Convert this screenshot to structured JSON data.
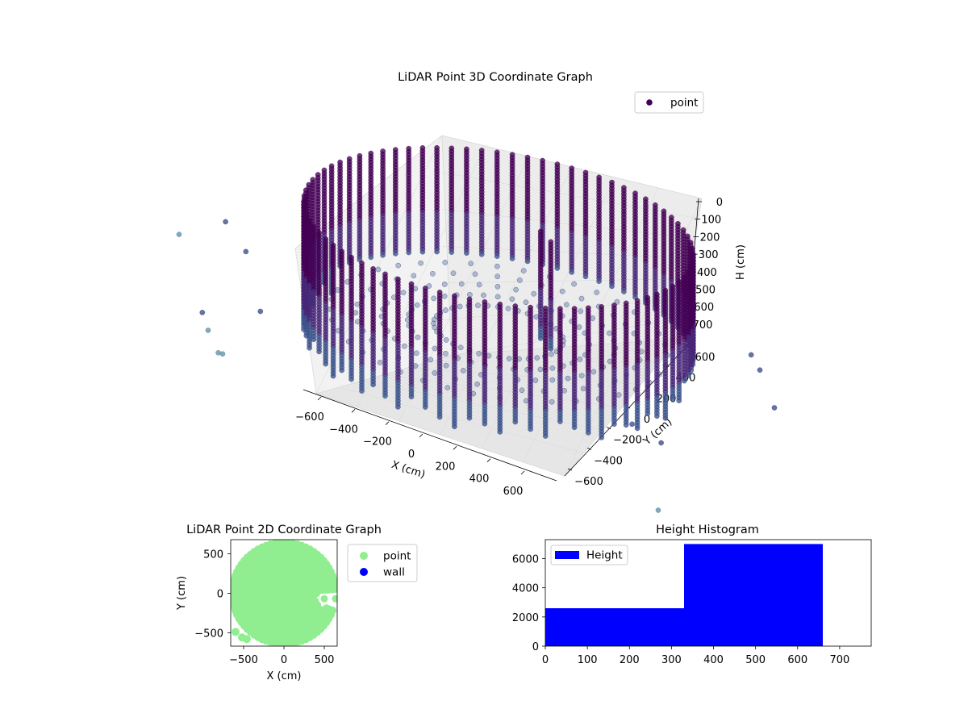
{
  "chart_data": [
    {
      "type": "scatter",
      "projection": "3d",
      "title": "LiDAR Point 3D Coordinate Graph",
      "xlabel": "X (cm)",
      "ylabel": "Y (cm)",
      "zlabel": "H (cm)",
      "xticks": [
        "−600",
        "−400",
        "−200",
        "0",
        "200",
        "400",
        "600"
      ],
      "yticks": [
        "−600",
        "−400",
        "−200",
        "0",
        "200",
        "400",
        "600"
      ],
      "zticks": [
        "0",
        "100",
        "200",
        "300",
        "400",
        "500",
        "600",
        "700"
      ],
      "z_inverted": true,
      "grid": true,
      "legend": {
        "placement": "upper-right",
        "entries": [
          "point"
        ]
      },
      "colors": {
        "point_dark": "#440154",
        "point_mid": "#3b528b",
        "point_light": "#5e8fa8",
        "pane": "#f2f2f2",
        "grid": "#d9d9d9"
      },
      "series": [
        {
          "name": "point",
          "shape": "cylindrical wall",
          "center": [
            0,
            0
          ],
          "radius": 600,
          "h_range": [
            0,
            700
          ],
          "stray_points": [
            {
              "x": -780,
              "y": -640,
              "h": 120
            },
            {
              "x": -700,
              "y": -480,
              "h": 90
            },
            {
              "x": -660,
              "y": -420,
              "h": 260
            },
            {
              "x": -740,
              "y": -560,
              "h": 560
            },
            {
              "x": -690,
              "y": -620,
              "h": 600
            },
            {
              "x": -640,
              "y": -650,
              "h": 680
            },
            {
              "x": -600,
              "y": -700,
              "h": 640
            },
            {
              "x": -560,
              "y": -520,
              "h": 480
            },
            {
              "x": 720,
              "y": -520,
              "h": 420
            },
            {
              "x": 760,
              "y": -400,
              "h": 560
            },
            {
              "x": 800,
              "y": 300,
              "h": 700
            },
            {
              "x": 640,
              "y": 520,
              "h": 690
            },
            {
              "x": 560,
              "y": 620,
              "h": 700
            },
            {
              "x": 900,
              "y": -700,
              "h": 700
            }
          ]
        }
      ]
    },
    {
      "type": "scatter",
      "title": "LiDAR Point 2D Coordinate Graph",
      "xlabel": "X (cm)",
      "ylabel": "Y (cm)",
      "xticks": [
        "−500",
        "0",
        "500"
      ],
      "yticks": [
        "500",
        "0",
        "−500"
      ],
      "xlim": [
        -660,
        660
      ],
      "ylim": [
        -670,
        680
      ],
      "legend": {
        "placement": "outside-right",
        "entries": [
          "point",
          "wall"
        ]
      },
      "colors": {
        "point": "#90ee90",
        "wall": "#0000ff"
      },
      "series": [
        {
          "name": "point",
          "shape": "filled disc",
          "center": [
            0,
            0
          ],
          "radius": 640,
          "gap": [
            {
              "x": 500,
              "y": -70
            },
            {
              "x": 640,
              "y": -70
            }
          ],
          "outliers": [
            {
              "x": -600,
              "y": -490
            },
            {
              "x": -520,
              "y": -560
            },
            {
              "x": -460,
              "y": -580
            }
          ]
        },
        {
          "name": "wall",
          "points": []
        }
      ]
    },
    {
      "type": "bar",
      "title": "Height Histogram",
      "xticks": [
        "0",
        "100",
        "200",
        "300",
        "400",
        "500",
        "600",
        "700"
      ],
      "yticks": [
        "0",
        "2000",
        "4000",
        "6000"
      ],
      "xlim": [
        0,
        775
      ],
      "ylim": [
        0,
        7300
      ],
      "legend": {
        "placement": "upper-left",
        "entries": [
          "Height"
        ]
      },
      "colors": {
        "bar": "#0000ff"
      },
      "bins": [
        {
          "x0": 0,
          "x1": 330,
          "count": 2600
        },
        {
          "x0": 330,
          "x1": 660,
          "count": 7000
        }
      ]
    }
  ]
}
